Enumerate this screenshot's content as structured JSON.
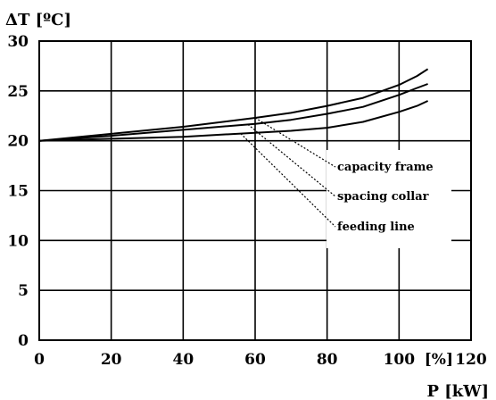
{
  "chart_data": {
    "type": "line",
    "title": "",
    "ylabel": "ΔT [ºC]",
    "xlabel": "P [kW]",
    "x_unit_label": "[%]",
    "xlim": [
      0,
      120
    ],
    "ylim": [
      0,
      30
    ],
    "x_ticks": [
      0,
      20,
      40,
      60,
      80,
      100,
      120
    ],
    "y_ticks": [
      0,
      5,
      10,
      15,
      20,
      25,
      30
    ],
    "x_tick_labels": [
      "0",
      "20",
      "40",
      "60",
      "80",
      "100",
      "120"
    ],
    "y_tick_labels": [
      "0",
      "5",
      "10",
      "15",
      "20",
      "25",
      "30"
    ],
    "grid": true,
    "series": [
      {
        "name": "capacity frame",
        "x": [
          0,
          20,
          40,
          60,
          70,
          80,
          90,
          100,
          105,
          108
        ],
        "y": [
          20,
          20.7,
          21.4,
          22.3,
          22.8,
          23.5,
          24.3,
          25.6,
          26.5,
          27.2
        ]
      },
      {
        "name": "spacing collar",
        "x": [
          0,
          20,
          40,
          60,
          70,
          80,
          90,
          100,
          105,
          108
        ],
        "y": [
          20,
          20.5,
          21.1,
          21.7,
          22.1,
          22.7,
          23.4,
          24.6,
          25.3,
          25.7
        ]
      },
      {
        "name": "feeding line",
        "x": [
          0,
          20,
          40,
          60,
          70,
          80,
          90,
          100,
          105,
          108
        ],
        "y": [
          20,
          20.2,
          20.4,
          20.8,
          21.0,
          21.3,
          21.9,
          22.9,
          23.5,
          24.0
        ]
      }
    ],
    "annotations": [
      {
        "text": "capacity frame",
        "points_to_series": "capacity frame",
        "at_x": 60
      },
      {
        "text": "spacing collar",
        "points_to_series": "spacing collar",
        "at_x": 58
      },
      {
        "text": "feeding line",
        "points_to_series": "feeding line",
        "at_x": 56
      }
    ]
  }
}
